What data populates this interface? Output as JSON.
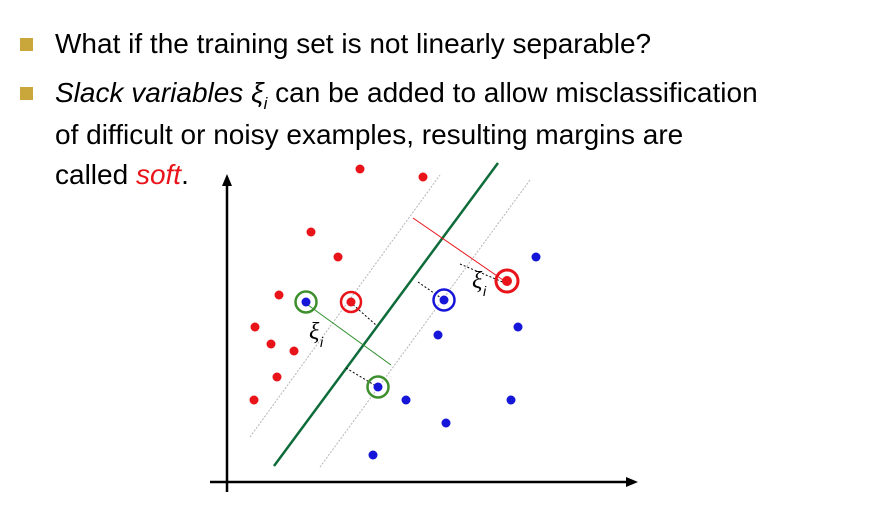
{
  "bullets": {
    "b1": {
      "text": "What if the training set is not linearly separable?"
    },
    "b2": {
      "part1": "Slack variables ",
      "xi": "ξ",
      "sub": "i",
      "part2": " can be added to allow misclassification",
      "line2": "of difficult or noisy examples, resulting margins are",
      "line3_pre": "called ",
      "soft": "soft",
      "line3_post": "."
    }
  },
  "diagram": {
    "xi_label": "ξ",
    "xi_sub": "i",
    "colors": {
      "red_class": "#e8141a",
      "blue_class": "#1616d8",
      "hyperplane": "#0e6b3a",
      "margin": "#b5b5b5",
      "slack_red": "#e8141a",
      "slack_green": "#2f8f2f",
      "circle_green": "#3c8f2c",
      "axis": "#000000"
    }
  }
}
